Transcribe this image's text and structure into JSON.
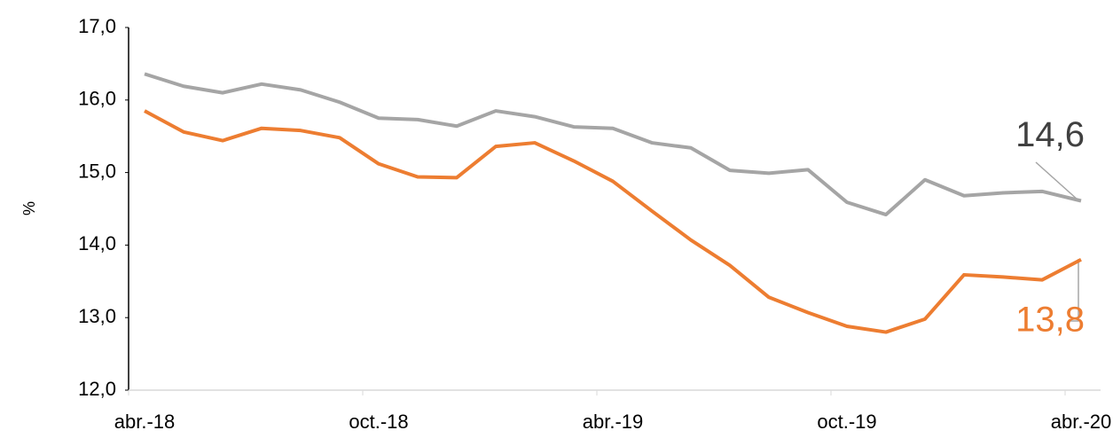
{
  "chart_data": {
    "type": "line",
    "y_label": "%",
    "categories": [
      "abr.-18",
      null,
      null,
      null,
      null,
      null,
      "oct.-18",
      null,
      null,
      null,
      null,
      null,
      "abr.-19",
      null,
      null,
      null,
      null,
      null,
      "oct.-19",
      null,
      null,
      null,
      null,
      null,
      "abr.-20"
    ],
    "series": [
      {
        "color": "#a5a5a5",
        "label_color": "#404040",
        "values": [
          16.36,
          16.19,
          16.1,
          16.22,
          16.14,
          15.97,
          15.75,
          15.73,
          15.64,
          15.85,
          15.77,
          15.63,
          15.61,
          15.41,
          15.34,
          15.03,
          14.99,
          15.04,
          14.59,
          14.42,
          14.9,
          14.68,
          14.72,
          14.74,
          14.61
        ],
        "value_labels": [
          null,
          null,
          null,
          null,
          null,
          null,
          null,
          null,
          null,
          null,
          null,
          null,
          null,
          null,
          null,
          null,
          null,
          null,
          null,
          null,
          null,
          null,
          null,
          null,
          "14,6"
        ]
      },
      {
        "color": "#ed7d31",
        "label_color": "#ed7d31",
        "values": [
          15.85,
          15.56,
          15.44,
          15.61,
          15.58,
          15.48,
          15.12,
          14.94,
          14.93,
          15.36,
          15.41,
          15.16,
          14.88,
          14.47,
          14.07,
          13.72,
          13.28,
          13.07,
          12.88,
          12.8,
          12.98,
          13.59,
          13.56,
          13.52,
          13.8
        ],
        "value_labels": [
          null,
          null,
          null,
          null,
          null,
          null,
          null,
          null,
          null,
          null,
          null,
          null,
          null,
          null,
          null,
          null,
          null,
          null,
          null,
          null,
          null,
          null,
          null,
          null,
          "13,8"
        ]
      }
    ],
    "ylim": [
      12,
      17
    ],
    "yticks": [
      {
        "value": 12,
        "label": "12,0"
      },
      {
        "value": 13,
        "label": "13,0"
      },
      {
        "value": 14,
        "label": "14,0"
      },
      {
        "value": 15,
        "label": "15,0"
      },
      {
        "value": 16,
        "label": "16,0"
      },
      {
        "value": 17,
        "label": "17,0"
      }
    ]
  }
}
